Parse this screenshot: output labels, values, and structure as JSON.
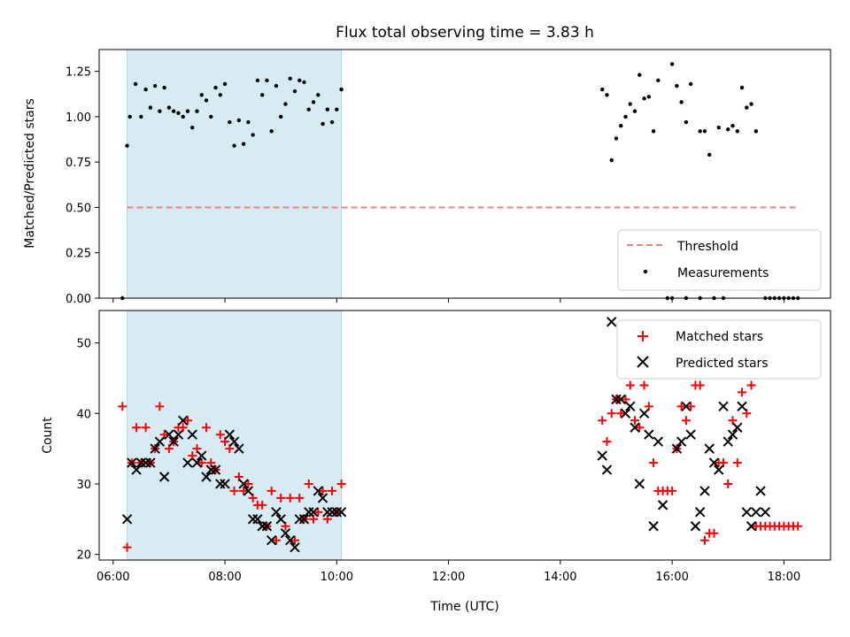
{
  "chart_data": [
    {
      "type": "scatter",
      "title": "Flux total observing time = 3.83 h",
      "xlabel": "",
      "ylabel": "Matched/Predicted stars",
      "x_unit": "hours UTC",
      "xlim": [
        "05:45",
        "18:50"
      ],
      "ylim": [
        0,
        1.37
      ],
      "yticks": [
        "0.00",
        "0.25",
        "0.50",
        "0.75",
        "1.00",
        "1.25"
      ],
      "xticks": [
        "06:00",
        "08:00",
        "10:00",
        "12:00",
        "14:00",
        "16:00",
        "18:00"
      ],
      "shaded_interval": [
        "06:15",
        "10:05"
      ],
      "shade_color": "#add8e6",
      "legend_position": "lower right",
      "series": [
        {
          "name": "Threshold",
          "kind": "dashed-line",
          "color": "#f08080",
          "x": [
            "06:15",
            "18:15"
          ],
          "y": [
            0.5,
            0.5
          ]
        },
        {
          "name": "Measurements",
          "kind": "dots",
          "color": "#000000",
          "x": [
            "06:10",
            "06:15",
            "06:18",
            "06:24",
            "06:30",
            "06:35",
            "06:40",
            "06:45",
            "06:50",
            "06:55",
            "07:00",
            "07:05",
            "07:10",
            "07:15",
            "07:20",
            "07:25",
            "07:30",
            "07:35",
            "07:40",
            "07:45",
            "07:50",
            "07:55",
            "08:00",
            "08:05",
            "08:10",
            "08:15",
            "08:20",
            "08:25",
            "08:30",
            "08:35",
            "08:40",
            "08:45",
            "08:50",
            "08:55",
            "09:00",
            "09:05",
            "09:10",
            "09:15",
            "09:20",
            "09:25",
            "09:30",
            "09:35",
            "09:40",
            "09:45",
            "09:50",
            "09:55",
            "10:00",
            "10:05",
            "14:45",
            "14:50",
            "14:55",
            "15:00",
            "15:05",
            "15:10",
            "15:15",
            "15:20",
            "15:25",
            "15:30",
            "15:35",
            "15:40",
            "15:45",
            "15:50",
            "15:55",
            "16:00",
            "16:05",
            "16:10",
            "16:15",
            "16:20",
            "16:25",
            "16:30",
            "16:35",
            "16:40",
            "16:45",
            "16:50",
            "16:55",
            "17:00",
            "17:05",
            "17:10",
            "17:15",
            "17:20",
            "17:25",
            "17:30",
            "17:35",
            "17:40",
            "15:55",
            "16:00",
            "16:15",
            "16:30",
            "16:45",
            "16:55",
            "17:40",
            "17:45",
            "17:50",
            "17:55",
            "18:00",
            "18:05",
            "18:10",
            "18:15"
          ],
          "y": [
            0.0,
            0.84,
            1.0,
            1.18,
            1.0,
            1.15,
            1.05,
            1.17,
            1.03,
            1.16,
            1.05,
            1.03,
            1.02,
            1.0,
            1.03,
            0.94,
            1.03,
            1.12,
            1.09,
            1.0,
            1.16,
            1.12,
            1.18,
            0.97,
            0.84,
            0.98,
            0.85,
            0.97,
            0.9,
            1.2,
            1.12,
            1.2,
            0.92,
            1.17,
            1.0,
            1.07,
            1.21,
            1.14,
            1.2,
            1.19,
            1.04,
            1.08,
            1.12,
            0.96,
            1.04,
            0.97,
            1.04,
            1.15,
            1.15,
            1.12,
            0.76,
            0.88,
            0.95,
            1.0,
            1.07,
            1.03,
            1.23,
            1.1,
            1.11,
            0.92,
            1.2,
            null,
            null,
            1.29,
            1.17,
            1.08,
            0.97,
            1.18,
            null,
            0.92,
            0.92,
            0.79,
            null,
            0.94,
            null,
            0.93,
            0.95,
            0.92,
            1.16,
            1.05,
            1.07,
            0.92,
            null,
            null,
            0.0,
            0.0,
            0.0,
            0.0,
            0.0,
            0.0,
            0.0,
            0.0,
            0.0,
            0.0,
            0.0,
            0.0,
            0.0,
            0.0
          ]
        }
      ]
    },
    {
      "type": "scatter",
      "title": "",
      "xlabel": "Time (UTC)",
      "ylabel": "Count",
      "xlim": [
        "05:45",
        "18:50"
      ],
      "ylim": [
        19.2,
        54.6
      ],
      "yticks": [
        "20",
        "30",
        "40",
        "50"
      ],
      "xticks": [
        "06:00",
        "08:00",
        "10:00",
        "12:00",
        "14:00",
        "16:00",
        "18:00"
      ],
      "shaded_interval": [
        "06:15",
        "10:05"
      ],
      "shade_color": "#add8e6",
      "legend_position": "upper right",
      "series": [
        {
          "name": "Matched stars",
          "marker": "+",
          "color": "#ff0000",
          "x": [
            "06:10",
            "06:15",
            "06:20",
            "06:25",
            "06:30",
            "06:35",
            "06:40",
            "06:45",
            "06:50",
            "06:55",
            "07:00",
            "07:05",
            "07:10",
            "07:15",
            "07:20",
            "07:25",
            "07:30",
            "07:35",
            "07:40",
            "07:45",
            "07:50",
            "07:55",
            "08:00",
            "08:05",
            "08:10",
            "08:15",
            "08:20",
            "08:25",
            "08:30",
            "08:35",
            "08:40",
            "08:45",
            "08:50",
            "08:55",
            "09:00",
            "09:05",
            "09:10",
            "09:15",
            "09:20",
            "09:25",
            "09:30",
            "09:35",
            "09:40",
            "09:45",
            "09:50",
            "09:55",
            "10:00",
            "10:05",
            "14:45",
            "14:50",
            "14:55",
            "15:00",
            "15:05",
            "15:10",
            "15:15",
            "15:20",
            "15:25",
            "15:30",
            "15:35",
            "15:40",
            "15:45",
            "15:50",
            "15:55",
            "16:00",
            "16:05",
            "16:10",
            "16:15",
            "16:20",
            "16:25",
            "16:30",
            "16:35",
            "16:40",
            "16:45",
            "16:50",
            "16:55",
            "17:00",
            "17:05",
            "17:10",
            "17:15",
            "17:20",
            "17:25",
            "17:30",
            "17:35",
            "17:40",
            "17:45",
            "17:50",
            "17:55",
            "18:00",
            "18:05",
            "18:10",
            "18:15"
          ],
          "y": [
            41,
            21,
            33,
            38,
            33,
            38,
            33,
            35,
            41,
            37,
            35,
            36,
            38,
            38,
            39,
            34,
            35,
            33,
            38,
            33,
            32,
            37,
            36,
            35,
            29,
            31,
            29,
            30,
            28,
            27,
            27,
            24,
            29,
            22,
            28,
            24,
            28,
            22,
            28,
            25,
            30,
            25,
            26,
            29,
            25,
            29,
            26,
            30,
            39,
            36,
            40,
            42,
            40,
            42,
            44,
            39,
            38,
            44,
            41,
            33,
            29,
            29,
            29,
            29,
            35,
            41,
            39,
            41,
            44,
            44,
            22,
            23,
            23,
            33,
            33,
            30,
            39,
            33,
            43,
            40,
            44,
            24,
            24,
            24,
            24,
            24,
            24,
            24,
            24,
            24,
            24
          ]
        },
        {
          "name": "Predicted stars",
          "marker": "x",
          "color": "#000000",
          "x": [
            "06:15",
            "06:20",
            "06:25",
            "06:30",
            "06:35",
            "06:40",
            "06:45",
            "06:50",
            "06:55",
            "07:00",
            "07:05",
            "07:10",
            "07:15",
            "07:20",
            "07:25",
            "07:30",
            "07:35",
            "07:40",
            "07:45",
            "07:50",
            "07:55",
            "08:00",
            "08:05",
            "08:10",
            "08:15",
            "08:20",
            "08:25",
            "08:30",
            "08:35",
            "08:40",
            "08:45",
            "08:50",
            "08:55",
            "09:00",
            "09:05",
            "09:10",
            "09:15",
            "09:20",
            "09:25",
            "09:30",
            "09:35",
            "09:40",
            "09:45",
            "09:50",
            "09:55",
            "10:00",
            "10:05",
            "14:45",
            "14:50",
            "14:55",
            "15:00",
            "15:05",
            "15:10",
            "15:15",
            "15:20",
            "15:25",
            "15:30",
            "15:35",
            "15:40",
            "15:45",
            "15:50",
            "16:05",
            "16:10",
            "16:15",
            "16:20",
            "16:25",
            "16:30",
            "16:35",
            "16:40",
            "16:45",
            "16:50",
            "16:55",
            "17:00",
            "17:05",
            "17:10",
            "17:15",
            "17:20",
            "17:25",
            "17:30",
            "17:35",
            "17:40"
          ],
          "y": [
            25,
            33,
            32,
            33,
            33,
            33,
            35,
            36,
            31,
            37,
            36,
            37,
            39,
            33,
            37,
            33,
            34,
            31,
            32,
            32,
            30,
            30,
            37,
            36,
            35,
            30,
            29,
            25,
            25,
            24,
            24,
            22,
            26,
            25,
            23,
            22,
            21,
            25,
            25,
            26,
            26,
            29,
            28,
            26,
            26,
            26,
            26,
            34,
            32,
            53,
            42,
            42,
            40,
            41,
            38,
            30,
            40,
            37,
            24,
            36,
            27,
            35,
            36,
            41,
            37,
            24,
            26,
            29,
            35,
            33,
            32,
            41,
            36,
            37,
            38,
            41,
            26,
            24,
            26,
            29,
            26
          ]
        }
      ]
    }
  ]
}
